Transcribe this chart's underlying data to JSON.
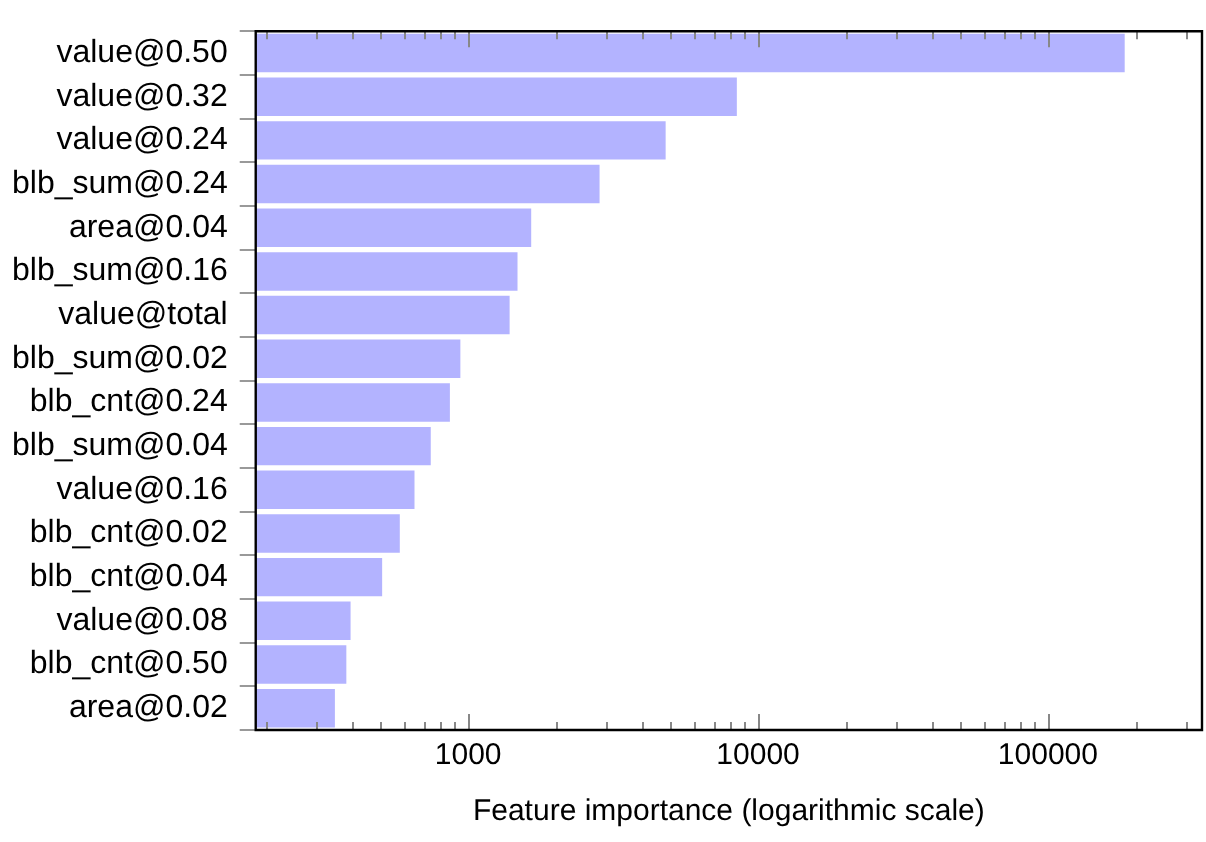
{
  "chart_data": {
    "type": "bar",
    "orientation": "horizontal",
    "log": "x",
    "xlabel": "Feature importance (logarithmic scale)",
    "categories": [
      "value@0.50",
      "value@0.32",
      "value@0.24",
      "blb_sum@0.24",
      "area@0.04",
      "blb_sum@0.16",
      "value@total",
      "blb_sum@0.02",
      "blb_cnt@0.24",
      "blb_sum@0.04",
      "value@0.16",
      "blb_cnt@0.02",
      "blb_cnt@0.04",
      "value@0.08",
      "blb_cnt@0.50",
      "area@0.02"
    ],
    "values": [
      184000,
      8450,
      4800,
      2840,
      1650,
      1480,
      1390,
      940,
      865,
      743,
      653,
      581,
      505,
      393,
      380,
      347
    ],
    "color": "#b3b3ff",
    "grid": false,
    "legend": false,
    "xlim": [
      185,
      340000
    ],
    "xticks": [
      {
        "value": 200,
        "label": null
      },
      {
        "value": 300,
        "label": null
      },
      {
        "value": 400,
        "label": null
      },
      {
        "value": 500,
        "label": null
      },
      {
        "value": 600,
        "label": null
      },
      {
        "value": 700,
        "label": null
      },
      {
        "value": 800,
        "label": null
      },
      {
        "value": 900,
        "label": null
      },
      1000,
      {
        "value": 2000,
        "label": null
      },
      {
        "value": 3000,
        "label": null
      },
      {
        "value": 4000,
        "label": null
      },
      {
        "value": 5000,
        "label": null
      },
      {
        "value": 6000,
        "label": null
      },
      {
        "value": 7000,
        "label": null
      },
      {
        "value": 8000,
        "label": null
      },
      {
        "value": 9000,
        "label": null
      },
      10000,
      {
        "value": 20000,
        "label": null
      },
      {
        "value": 30000,
        "label": null
      },
      {
        "value": 40000,
        "label": null
      },
      {
        "value": 50000,
        "label": null
      },
      {
        "value": 60000,
        "label": null
      },
      {
        "value": 70000,
        "label": null
      },
      {
        "value": 80000,
        "label": null
      },
      {
        "value": 90000,
        "label": null
      },
      100000,
      {
        "value": 200000,
        "label": null
      },
      {
        "value": 300000,
        "label": null
      }
    ]
  }
}
